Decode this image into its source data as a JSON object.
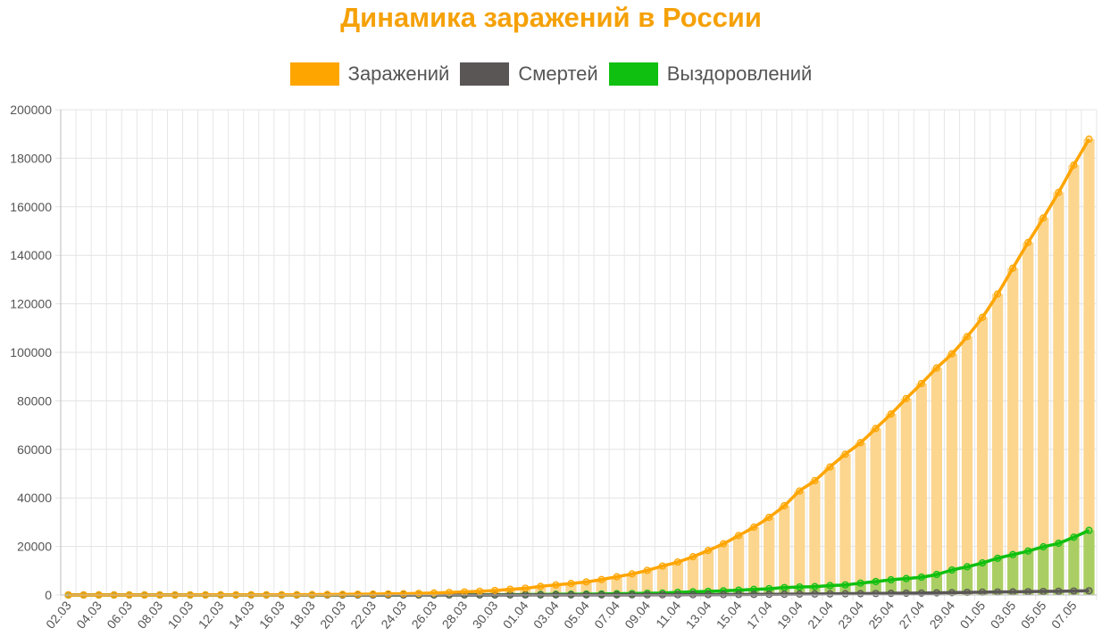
{
  "chart_data": {
    "type": "line",
    "title": "Динамика заражений в России",
    "xlabel": "",
    "ylabel": "",
    "ylim": [
      0,
      200000
    ],
    "yticks": [
      0,
      20000,
      40000,
      60000,
      80000,
      100000,
      120000,
      140000,
      160000,
      180000,
      200000
    ],
    "grid": true,
    "legend_position": "top",
    "colors": {
      "infected": "#ffa500",
      "deaths": "#5b5656",
      "recovered": "#10c010",
      "bar": "#fcd68f"
    },
    "x": [
      "02.03",
      "03.03",
      "04.03",
      "05.03",
      "06.03",
      "07.03",
      "08.03",
      "09.03",
      "10.03",
      "11.03",
      "12.03",
      "13.03",
      "14.03",
      "15.03",
      "16.03",
      "17.03",
      "18.03",
      "19.03",
      "20.03",
      "21.03",
      "22.03",
      "23.03",
      "24.03",
      "25.03",
      "26.03",
      "27.03",
      "28.03",
      "29.03",
      "30.03",
      "31.03",
      "01.04",
      "02.04",
      "03.04",
      "04.04",
      "05.04",
      "06.04",
      "07.04",
      "08.04",
      "09.04",
      "10.04",
      "11.04",
      "12.04",
      "13.04",
      "14.04",
      "15.04",
      "16.04",
      "17.04",
      "18.04",
      "19.04",
      "20.04",
      "21.04",
      "22.04",
      "23.04",
      "24.04",
      "25.04",
      "26.04",
      "27.04",
      "28.04",
      "29.04",
      "30.04",
      "01.05",
      "02.05",
      "03.05",
      "04.05",
      "05.05",
      "06.05",
      "07.05",
      "08.05"
    ],
    "x_tick_labels": [
      "02.03",
      "04.03",
      "06.03",
      "08.03",
      "10.03",
      "12.03",
      "14.03",
      "16.03",
      "18.03",
      "20.03",
      "22.03",
      "24.03",
      "26.03",
      "28.03",
      "30.03",
      "01.04",
      "03.04",
      "05.04",
      "07.04",
      "09.04",
      "11.04",
      "13.04",
      "15.04",
      "17.04",
      "19.04",
      "21.04",
      "23.04",
      "25.04",
      "27.04",
      "29.04",
      "01.05",
      "03.05",
      "05.05",
      "07.05"
    ],
    "series": [
      {
        "name": "Заражений",
        "key": "infected",
        "display": "line+bar",
        "values": [
          3,
          3,
          3,
          4,
          7,
          10,
          10,
          17,
          20,
          28,
          34,
          45,
          59,
          63,
          90,
          114,
          147,
          199,
          253,
          306,
          367,
          438,
          495,
          658,
          840,
          1036,
          1264,
          1534,
          1836,
          2337,
          2777,
          3548,
          4149,
          4731,
          5389,
          6343,
          7497,
          8672,
          10131,
          11917,
          13584,
          15770,
          18328,
          21102,
          24490,
          27938,
          32008,
          36793,
          42853,
          47121,
          52763,
          57999,
          62773,
          68622,
          74588,
          80949,
          87147,
          93558,
          99399,
          106498,
          114431,
          124054,
          134687,
          145268,
          155370,
          165929,
          177160,
          187859
        ]
      },
      {
        "name": "Смертей",
        "key": "deaths",
        "display": "line",
        "values": [
          0,
          0,
          0,
          0,
          0,
          0,
          0,
          0,
          0,
          0,
          0,
          0,
          0,
          0,
          0,
          0,
          0,
          0,
          1,
          1,
          1,
          1,
          1,
          3,
          3,
          4,
          4,
          8,
          9,
          17,
          24,
          30,
          34,
          43,
          45,
          47,
          58,
          63,
          76,
          94,
          106,
          130,
          148,
          170,
          198,
          232,
          273,
          313,
          361,
          405,
          456,
          513,
          555,
          615,
          681,
          747,
          794,
          867,
          972,
          1073,
          1169,
          1222,
          1280,
          1356,
          1451,
          1537,
          1625,
          1723
        ]
      },
      {
        "name": "Выздоровлений",
        "key": "recovered",
        "display": "line+bar",
        "values": [
          0,
          0,
          0,
          0,
          0,
          0,
          0,
          0,
          0,
          0,
          0,
          0,
          1,
          5,
          5,
          5,
          9,
          9,
          12,
          16,
          16,
          17,
          22,
          29,
          38,
          45,
          49,
          64,
          66,
          121,
          190,
          235,
          281,
          333,
          355,
          406,
          494,
          580,
          698,
          795,
          1045,
          1291,
          1470,
          1694,
          1986,
          2304,
          2590,
          3057,
          3291,
          3446,
          3873,
          4156,
          4891,
          5507,
          6250,
          6767,
          7346,
          8456,
          10286,
          11619,
          13220,
          15131,
          16639,
          18095,
          19865,
          21327,
          23803,
          26608
        ]
      }
    ]
  }
}
